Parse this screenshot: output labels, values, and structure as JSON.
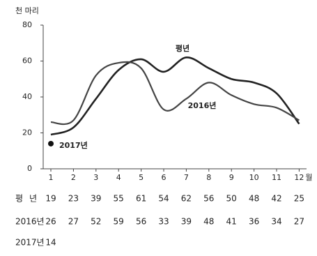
{
  "chart_data": {
    "type": "line",
    "y_unit": "천 마리",
    "x_unit": "월",
    "categories": [
      "1",
      "2",
      "3",
      "4",
      "5",
      "6",
      "7",
      "8",
      "9",
      "10",
      "11",
      "12"
    ],
    "ylim": [
      0,
      80
    ],
    "yticks": [
      0,
      20,
      40,
      60,
      80
    ],
    "series": [
      {
        "name": "평년",
        "color": "#222222",
        "marker": false,
        "values": [
          19,
          23,
          39,
          55,
          61,
          54,
          62,
          56,
          50,
          48,
          42,
          25
        ]
      },
      {
        "name": "2016년",
        "color": "#444444",
        "marker": false,
        "values": [
          26,
          27,
          52,
          59,
          56,
          33,
          39,
          48,
          41,
          36,
          34,
          27
        ]
      },
      {
        "name": "2017년",
        "color": "#111111",
        "marker": true,
        "values": [
          14,
          null,
          null,
          null,
          null,
          null,
          null,
          null,
          null,
          null,
          null,
          null
        ]
      }
    ]
  }
}
